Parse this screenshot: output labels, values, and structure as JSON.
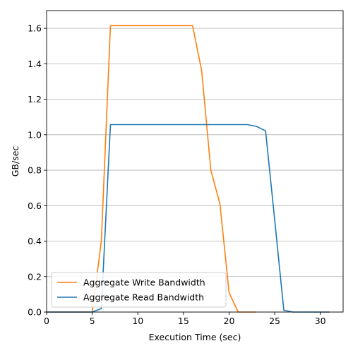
{
  "chart_data": {
    "type": "line",
    "title": "",
    "xlabel": "Execution Time (sec)",
    "ylabel": "GB/sec",
    "xlim": [
      0,
      32.5
    ],
    "ylim": [
      0,
      1.7
    ],
    "xticks": [
      0,
      5,
      10,
      15,
      20,
      25,
      30
    ],
    "yticks": [
      0.0,
      0.2,
      0.4,
      0.6,
      0.8,
      1.0,
      1.2,
      1.4,
      1.6
    ],
    "xtick_labels": [
      "0",
      "5",
      "10",
      "15",
      "20",
      "25",
      "30"
    ],
    "ytick_labels": [
      "0.0",
      "0.2",
      "0.4",
      "0.6",
      "0.8",
      "1.0",
      "1.2",
      "1.4",
      "1.6"
    ],
    "grid": "horizontal",
    "legend": "lower-left",
    "series": [
      {
        "name": "Aggregate Write Bandwidth",
        "color": "#ff7f0e",
        "x": [
          0,
          1,
          2,
          3,
          4,
          5,
          6,
          7,
          8,
          9,
          10,
          11,
          12,
          13,
          14,
          15,
          16,
          17,
          18,
          19,
          20,
          21,
          22,
          23
        ],
        "y": [
          0,
          0,
          0,
          0,
          0,
          0,
          0.4,
          1.615,
          1.615,
          1.615,
          1.615,
          1.615,
          1.615,
          1.615,
          1.615,
          1.615,
          1.615,
          1.36,
          0.8,
          0.61,
          0.11,
          0,
          0,
          0
        ]
      },
      {
        "name": "Aggregate Read Bandwidth",
        "color": "#1f77b4",
        "x": [
          0,
          1,
          2,
          3,
          4,
          5,
          6,
          7,
          8,
          9,
          10,
          11,
          12,
          13,
          14,
          15,
          16,
          17,
          18,
          19,
          20,
          21,
          22,
          23,
          24,
          25,
          26,
          27,
          28,
          29,
          30,
          31
        ],
        "y": [
          0,
          0,
          0,
          0,
          0,
          0,
          0.02,
          1.057,
          1.057,
          1.057,
          1.057,
          1.057,
          1.057,
          1.057,
          1.057,
          1.057,
          1.057,
          1.057,
          1.057,
          1.057,
          1.057,
          1.057,
          1.057,
          1.047,
          1.022,
          0.52,
          0.01,
          0,
          0,
          0,
          0,
          0
        ]
      }
    ]
  }
}
